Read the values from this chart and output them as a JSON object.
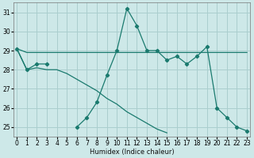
{
  "background_color": "#cde8e8",
  "grid_color": "#aacece",
  "line_color": "#1a7a6e",
  "xlabel": "Humidex (Indice chaleur)",
  "ylim": [
    24.5,
    31.5
  ],
  "xlim": [
    -0.3,
    23.3
  ],
  "yticks": [
    25,
    26,
    27,
    28,
    29,
    30,
    31
  ],
  "xticks": [
    0,
    1,
    2,
    3,
    4,
    5,
    6,
    7,
    8,
    9,
    10,
    11,
    12,
    13,
    14,
    15,
    16,
    17,
    18,
    19,
    20,
    21,
    22,
    23
  ],
  "series": {
    "flat": [
      29.1,
      28.9,
      28.9,
      28.9,
      28.9,
      28.9,
      28.9,
      28.9,
      28.9,
      28.9,
      28.9,
      28.9,
      28.9,
      28.9,
      28.9,
      28.9,
      28.9,
      28.9,
      28.9,
      28.9,
      28.9,
      28.9,
      28.9,
      28.9
    ],
    "wavy": [
      29.1,
      28.0,
      28.3,
      28.3,
      null,
      null,
      25.0,
      25.5,
      26.3,
      27.7,
      29.0,
      31.2,
      30.3,
      29.0,
      29.0,
      28.5,
      28.7,
      28.3,
      28.7,
      29.2,
      26.0,
      25.5,
      25.0,
      24.8
    ],
    "diagonal": [
      29.1,
      28.0,
      28.1,
      28.0,
      28.0,
      27.8,
      27.5,
      27.2,
      26.9,
      26.5,
      26.2,
      25.8,
      25.5,
      25.2,
      24.9,
      24.7,
      null,
      null,
      null,
      null,
      null,
      null,
      null,
      null
    ]
  },
  "title_fontsize": 7,
  "axis_fontsize": 6.0,
  "tick_fontsize": 5.5
}
